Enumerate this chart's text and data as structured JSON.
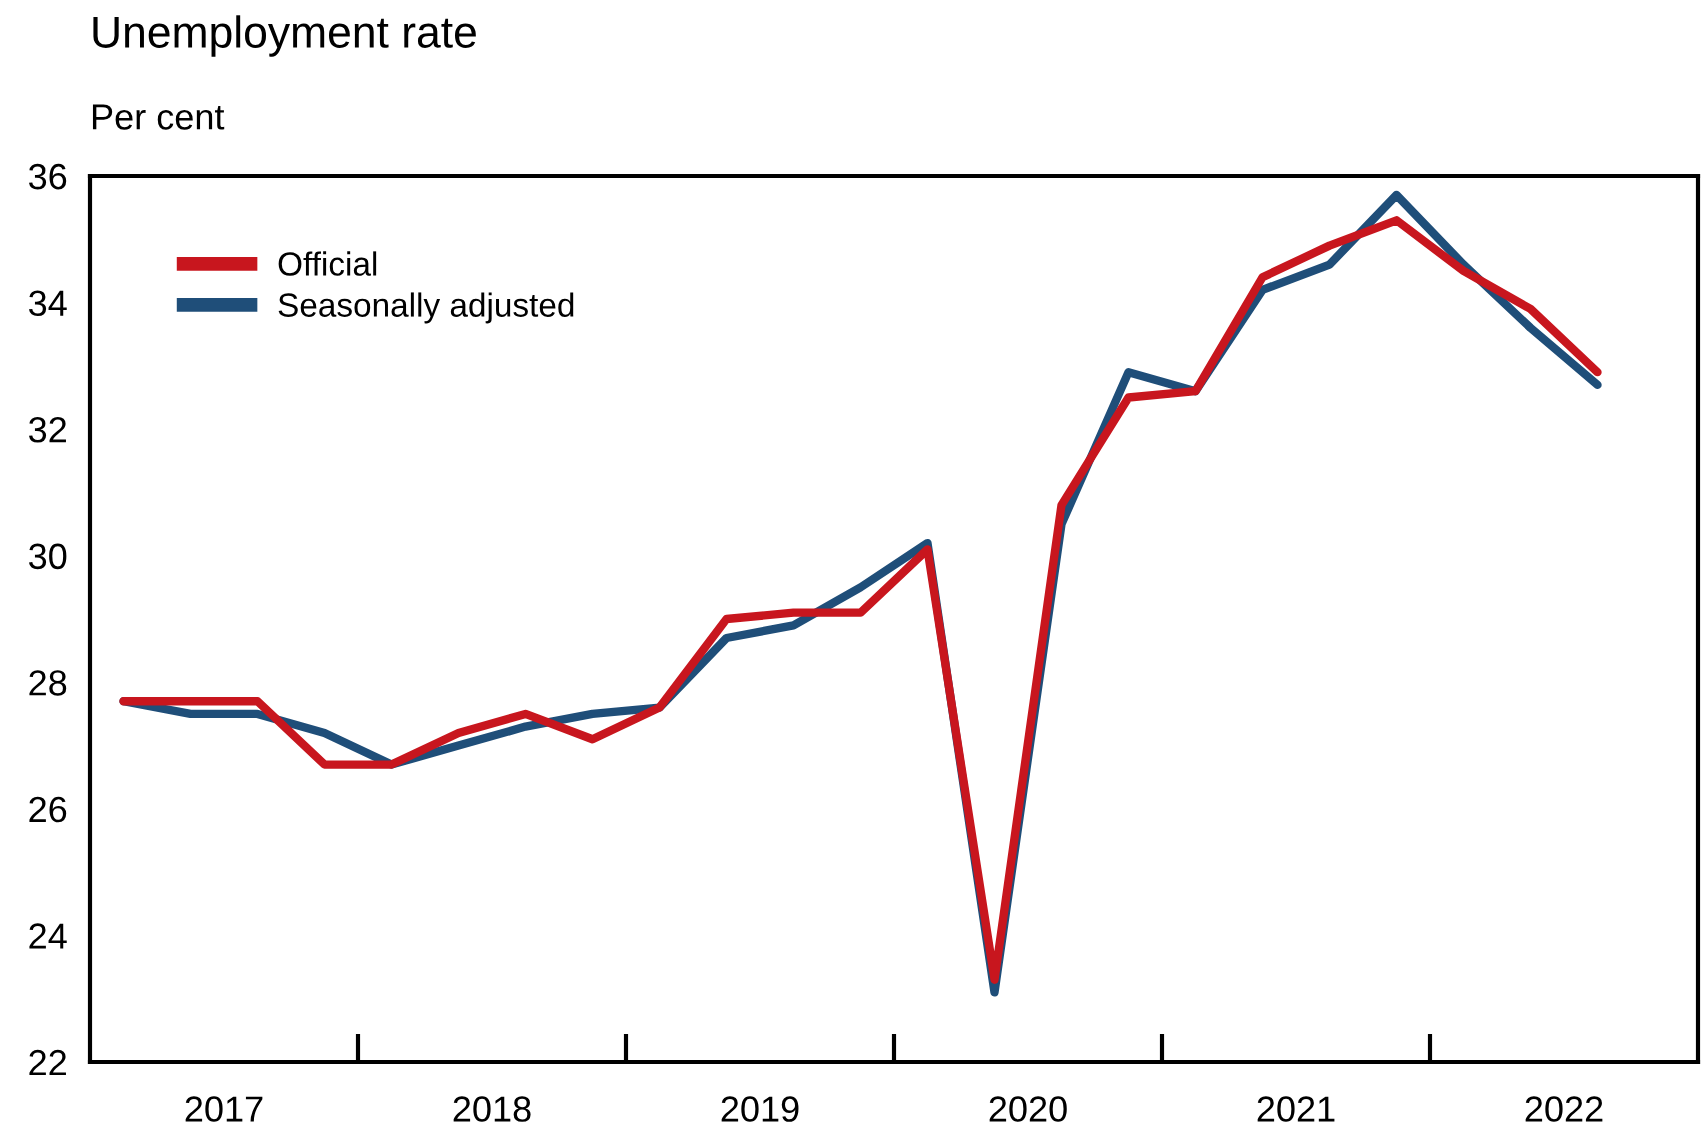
{
  "chart_data": {
    "type": "line",
    "title": "Unemployment rate",
    "ylabel": "Per cent",
    "x": [
      2017.125,
      2017.375,
      2017.625,
      2017.875,
      2018.125,
      2018.375,
      2018.625,
      2018.875,
      2019.125,
      2019.375,
      2019.625,
      2019.875,
      2020.125,
      2020.375,
      2020.625,
      2020.875,
      2021.125,
      2021.375,
      2021.625,
      2021.875,
      2022.125,
      2022.375,
      2022.625
    ],
    "series": [
      {
        "name": "Seasonally adjusted",
        "color": "#1f4e79",
        "values": [
          27.7,
          27.5,
          27.5,
          27.2,
          26.7,
          27.0,
          27.3,
          27.5,
          27.6,
          28.7,
          28.9,
          29.5,
          30.2,
          23.1,
          30.5,
          32.9,
          32.6,
          34.2,
          34.6,
          35.7,
          34.6,
          33.6,
          32.7
        ]
      },
      {
        "name": "Official",
        "color": "#c8161e",
        "values": [
          27.7,
          27.7,
          27.7,
          26.7,
          26.7,
          27.2,
          27.5,
          27.1,
          27.6,
          29.0,
          29.1,
          29.1,
          30.1,
          23.3,
          30.8,
          32.5,
          32.6,
          34.4,
          34.9,
          35.3,
          34.5,
          33.9,
          32.9
        ]
      }
    ],
    "xlim": [
      2017,
      2023
    ],
    "xticks": [
      {
        "value": 2018,
        "label": null
      },
      {
        "value": 2019,
        "label": null
      },
      {
        "value": 2020,
        "label": null
      },
      {
        "value": 2021,
        "label": null
      },
      {
        "value": 2022,
        "label": null
      },
      {
        "value": 2017.5,
        "label": "2017"
      },
      {
        "value": 2018.5,
        "label": "2018"
      },
      {
        "value": 2019.5,
        "label": "2019"
      },
      {
        "value": 2020.5,
        "label": "2020"
      },
      {
        "value": 2021.5,
        "label": "2021"
      },
      {
        "value": 2022.5,
        "label": "2022"
      }
    ],
    "ylim": [
      22,
      36
    ],
    "yticks": [
      22,
      24,
      26,
      28,
      30,
      32,
      34,
      36
    ],
    "legend": "top left",
    "grid": false,
    "marker": "none",
    "line_style": "solid"
  }
}
